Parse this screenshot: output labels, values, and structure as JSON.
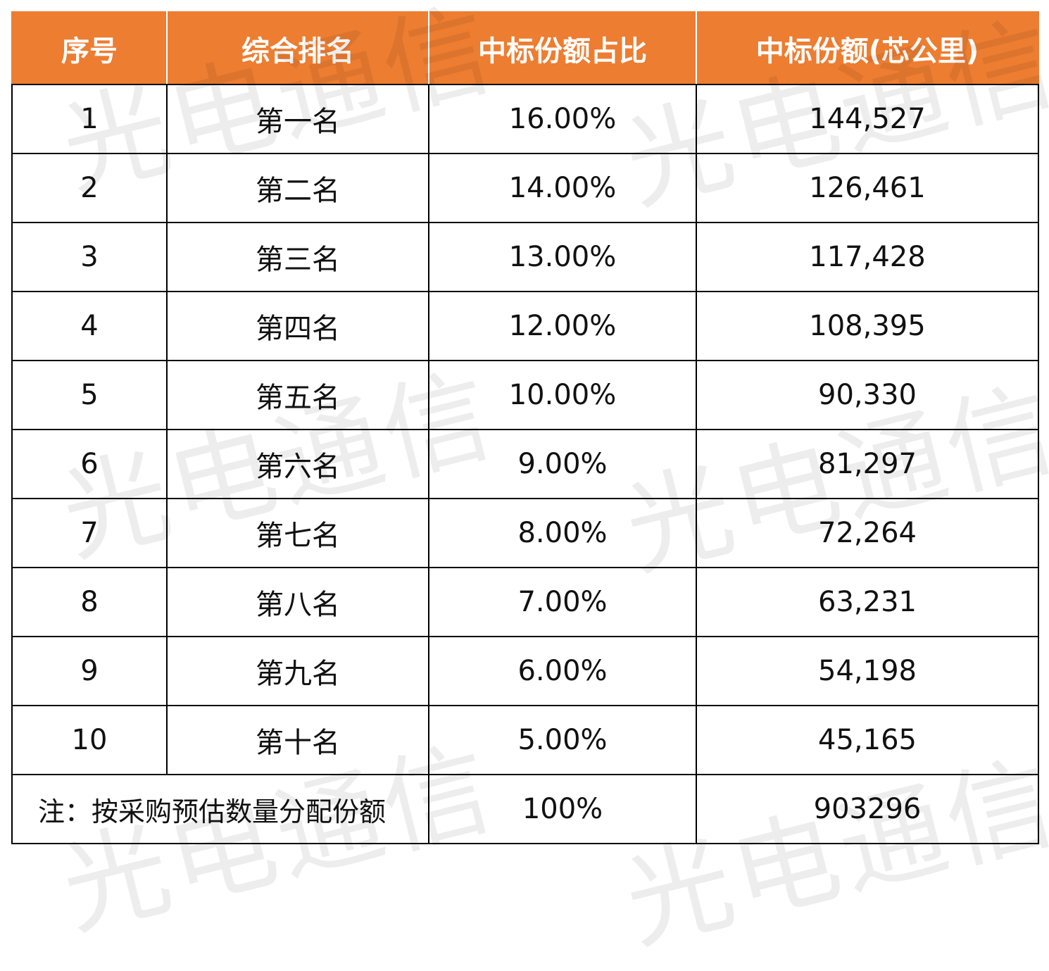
{
  "watermark": "光电通信",
  "table": {
    "headers": [
      "序号",
      "综合排名",
      "中标份额占比",
      "中标份额(芯公里)"
    ],
    "rows": [
      [
        "1",
        "第一名",
        "16.00%",
        "144,527"
      ],
      [
        "2",
        "第二名",
        "14.00%",
        "126,461"
      ],
      [
        "3",
        "第三名",
        "13.00%",
        "117,428"
      ],
      [
        "4",
        "第四名",
        "12.00%",
        "108,395"
      ],
      [
        "5",
        "第五名",
        "10.00%",
        "90,330"
      ],
      [
        "6",
        "第六名",
        "9.00%",
        "81,297"
      ],
      [
        "7",
        "第七名",
        "8.00%",
        "72,264"
      ],
      [
        "8",
        "第八名",
        "7.00%",
        "63,231"
      ],
      [
        "9",
        "第九名",
        "6.00%",
        "54,198"
      ],
      [
        "10",
        "第十名",
        "5.00%",
        "45,165"
      ]
    ],
    "footer": {
      "note": "注：按采购预估数量分配份额",
      "share_total": "100%",
      "amount_total": "903296"
    }
  },
  "colors": {
    "header_bg": "#ed7d31",
    "header_text": "#ffffff",
    "border": "#000000"
  }
}
